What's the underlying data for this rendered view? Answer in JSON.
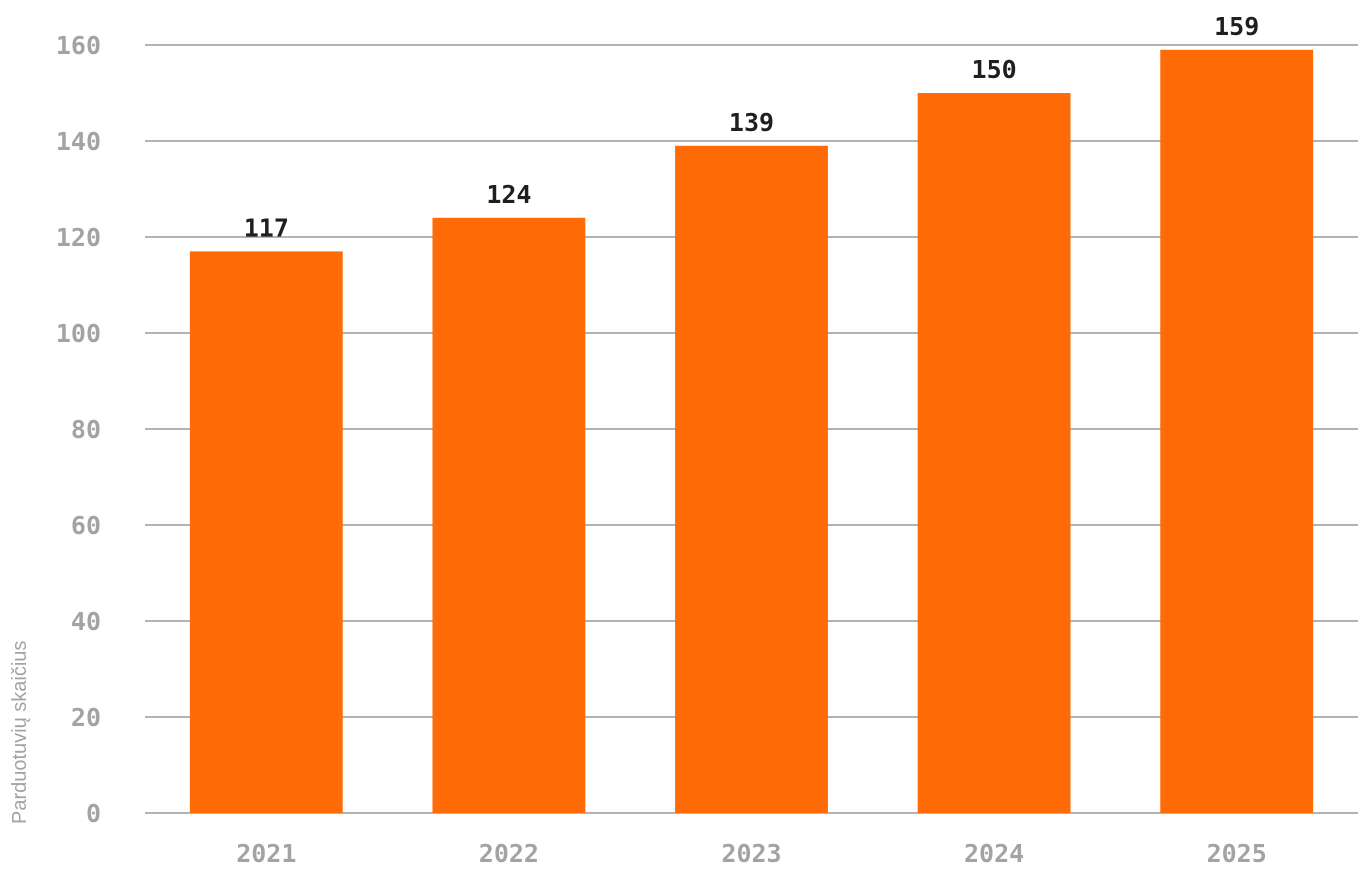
{
  "chart_data": {
    "type": "bar",
    "categories": [
      "2021",
      "2022",
      "2023",
      "2024",
      "2025"
    ],
    "values": [
      117,
      124,
      139,
      150,
      159
    ],
    "data_labels": [
      "117",
      "124",
      "139",
      "150",
      "159"
    ],
    "xlabel": "",
    "ylabel": "Parduotuvių skaičius",
    "ylim": [
      0,
      160
    ],
    "yticks": [
      "0",
      "20",
      "40",
      "60",
      "80",
      "100",
      "120",
      "140",
      "160"
    ],
    "grid": true,
    "legend": "none",
    "bar_color": "#ff6b06"
  }
}
